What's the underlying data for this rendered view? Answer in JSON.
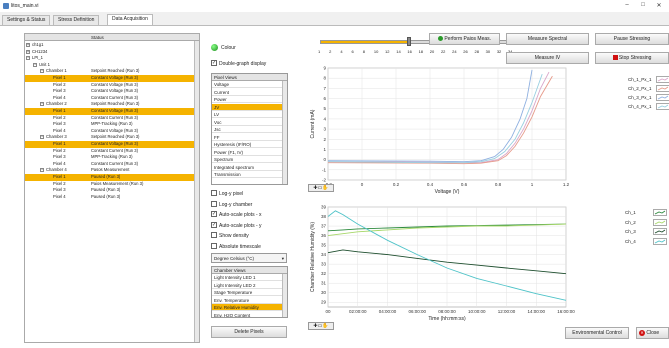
{
  "window": {
    "title": "litos_main.vi",
    "controls": [
      "–",
      "□",
      "✕"
    ]
  },
  "tabs": [
    {
      "label": "Settings & Status",
      "active": false
    },
    {
      "label": "Stress Definition",
      "active": false
    },
    {
      "label": "Data Acquisition",
      "active": true
    }
  ],
  "tree": {
    "header_status": "Status",
    "rows": [
      {
        "level": 0,
        "name": "ch1g1",
        "status": "",
        "expander": "+",
        "selected": false
      },
      {
        "level": 0,
        "name": "CH1234",
        "status": "",
        "expander": "+",
        "selected": false
      },
      {
        "level": 0,
        "name": "LPI_1",
        "status": "",
        "expander": "−",
        "selected": false
      },
      {
        "level": 1,
        "name": "Unit 1",
        "status": "",
        "expander": "−",
        "selected": false
      },
      {
        "level": 2,
        "name": "Chamber 1",
        "status": "Setpoint Reached (Run 3)",
        "expander": "−",
        "selected": false
      },
      {
        "level": 3,
        "name": "Pixel 1",
        "status": "Constant Voltage (Run 3)",
        "expander": "",
        "selected": true
      },
      {
        "level": 3,
        "name": "Pixel 2",
        "status": "Constant Voltage (Run 3)",
        "expander": "",
        "selected": false
      },
      {
        "level": 3,
        "name": "Pixel 3",
        "status": "Constant Voltage (Run 3)",
        "expander": "",
        "selected": false
      },
      {
        "level": 3,
        "name": "Pixel 4",
        "status": "Constant Current (Run 3)",
        "expander": "",
        "selected": false
      },
      {
        "level": 2,
        "name": "Chamber 2",
        "status": "Setpoint Reached (Run 3)",
        "expander": "−",
        "selected": false
      },
      {
        "level": 3,
        "name": "Pixel 1",
        "status": "Constant Voltage (Run 3)",
        "expander": "",
        "selected": true
      },
      {
        "level": 3,
        "name": "Pixel 2",
        "status": "Constant Current (Run 3)",
        "expander": "",
        "selected": false
      },
      {
        "level": 3,
        "name": "Pixel 3",
        "status": "MPP-Tracking (Run 3)",
        "expander": "",
        "selected": false
      },
      {
        "level": 3,
        "name": "Pixel 4",
        "status": "Constant Voltage (Run 3)",
        "expander": "",
        "selected": false
      },
      {
        "level": 2,
        "name": "Chamber 3",
        "status": "Setpoint Reached (Run 3)",
        "expander": "−",
        "selected": false
      },
      {
        "level": 3,
        "name": "Pixel 1",
        "status": "Constant Voltage (Run 3)",
        "expander": "",
        "selected": true
      },
      {
        "level": 3,
        "name": "Pixel 2",
        "status": "Constant Current (Run 3)",
        "expander": "",
        "selected": false
      },
      {
        "level": 3,
        "name": "Pixel 3",
        "status": "MPP-Tracking (Run 3)",
        "expander": "",
        "selected": false
      },
      {
        "level": 3,
        "name": "Pixel 4",
        "status": "Constant Current (Run 3)",
        "expander": "",
        "selected": false
      },
      {
        "level": 2,
        "name": "Chamber 4",
        "status": "Pasos Measurement",
        "expander": "−",
        "selected": false
      },
      {
        "level": 3,
        "name": "Pixel 1",
        "status": "Paused (Run 3)",
        "expander": "",
        "selected": true
      },
      {
        "level": 3,
        "name": "Pixel 2",
        "status": "Paios Measurement (Run 3)",
        "expander": "",
        "selected": false
      },
      {
        "level": 3,
        "name": "Pixel 3",
        "status": "Paused (Run 3)",
        "expander": "",
        "selected": false
      },
      {
        "level": 3,
        "name": "Pixel 4",
        "status": "Paused (Run 3)",
        "expander": "",
        "selected": false
      }
    ]
  },
  "controls": {
    "colour_label": "Colour",
    "double_graph_label": "Double-graph display",
    "double_graph_checked": true,
    "pixel_views_header": "Pixel Views",
    "pixel_views": [
      "Voltage",
      "Current",
      "Power",
      "JV",
      "LV",
      "Voc",
      "Jsc",
      "FF",
      "Hysteresis (IF/RO)",
      "Power (F1, IV)",
      "Spectrum",
      "Integrated spectrum",
      "Transmission"
    ],
    "pixel_views_selected": "JV",
    "checks": [
      {
        "label": "Log-y pixel",
        "checked": false
      },
      {
        "label": "Log-y chamber",
        "checked": false
      },
      {
        "label": "Auto-scale plots - x",
        "checked": true
      },
      {
        "label": "Auto-scale plots - y",
        "checked": true
      },
      {
        "label": "Show density",
        "checked": false
      },
      {
        "label": "Absolute timescale",
        "checked": false
      }
    ],
    "temp_unit": "Degree Celsius (°C)",
    "chamber_views_header": "Chamber Views",
    "chamber_views": [
      "Light Intensity LED 1",
      "Light Intensity LED 2",
      "Stage Temperature",
      "Env. Temperature",
      "Env. Relative Humidity",
      "Env. H2O Content"
    ],
    "chamber_views_selected": "Env. Relative Humidity",
    "delete_pixels_label": "Delete Pixels"
  },
  "top": {
    "perform_paios_label": "Perform Paios Meas.",
    "measure_spectral_label": "Measure Spectral",
    "measure_iv_label": "Measure IV",
    "pause_stressing_label": "Pause Stressing",
    "stop_stressing_label": "Stop Stressing",
    "slider_ticks": [
      "1",
      "2",
      "4",
      "6",
      "8",
      "10",
      "12",
      "14",
      "16",
      "18",
      "20",
      "22",
      "24",
      "26",
      "28",
      "30",
      "32",
      "34"
    ],
    "slider_value_fraction": 0.47,
    "colors": {
      "slider_accent": "#f5b300",
      "stop_red": "#d01010"
    }
  },
  "bottom": {
    "environmental_control_label": "Environmental Control",
    "close_label": "Close"
  },
  "chart_data": [
    {
      "type": "line",
      "xlabel": "Voltage (V)",
      "ylabel": "Current (mA)",
      "xticks": [
        "-0.2",
        "0",
        "0.2",
        "0.4",
        "0.6",
        "0.8",
        "1",
        "1.2"
      ],
      "yticks": [
        "9",
        "8",
        "7",
        "6",
        "5",
        "4",
        "3",
        "2",
        "1",
        "0",
        "-1",
        "-2"
      ],
      "xlim": [
        -0.2,
        1.2
      ],
      "ylim": [
        -2,
        9
      ],
      "grid": true,
      "legend_position": "right",
      "series": [
        {
          "name": "Ch_1_Px_1",
          "color": "#d9a6c9",
          "x": [
            -0.2,
            0.4,
            0.6,
            0.7,
            0.8,
            0.85,
            0.9,
            0.95,
            1.0,
            1.05,
            1.1
          ],
          "y": [
            -0.2,
            -0.25,
            -0.3,
            -0.3,
            0,
            0.6,
            1.6,
            3.0,
            4.8,
            7.0,
            8.6
          ]
        },
        {
          "name": "Ch_2_Px_1",
          "color": "#e69a8a",
          "x": [
            -0.2,
            0.4,
            0.6,
            0.7,
            0.8,
            0.85,
            0.9,
            0.95,
            1.0,
            1.05,
            1.12
          ],
          "y": [
            -0.3,
            -0.35,
            -0.4,
            -0.35,
            -0.1,
            0.4,
            1.3,
            2.6,
            4.2,
            6.2,
            8.2
          ]
        },
        {
          "name": "Ch_3_Px_1",
          "color": "#8fb0e0",
          "x": [
            -0.2,
            0.4,
            0.6,
            0.7,
            0.78,
            0.83,
            0.88,
            0.93,
            0.97,
            1.0
          ],
          "y": [
            -0.1,
            -0.15,
            -0.2,
            -0.1,
            0.3,
            1.0,
            2.2,
            4.0,
            6.0,
            8.8
          ]
        },
        {
          "name": "Ch_4_Px_1",
          "color": "#99cfe0",
          "x": [
            -0.2,
            0.4,
            0.6,
            0.7,
            0.78,
            0.84,
            0.9,
            0.95,
            1.0,
            1.06
          ],
          "y": [
            -0.2,
            -0.3,
            -0.3,
            -0.2,
            0.1,
            0.8,
            2.0,
            3.6,
            5.6,
            8.4
          ]
        }
      ]
    },
    {
      "type": "line",
      "xlabel": "Time (hh:mm:ss)",
      "ylabel": "Chamber Relative Humidity (%)",
      "xticks": [
        "00",
        "02:00:00",
        "04:00:00",
        "06:00:00",
        "08:00:00",
        "10:00:00",
        "12:00:00",
        "14:00:00",
        "16:00:00"
      ],
      "yticks": [
        "39",
        "38",
        "37",
        "36",
        "35",
        "34",
        "33",
        "32",
        "31",
        "30",
        "29",
        "28"
      ],
      "xlim": [
        0,
        16
      ],
      "ylim": [
        28.5,
        39
      ],
      "grid": true,
      "legend_position": "right",
      "series": [
        {
          "name": "Ch_1",
          "color": "#2e8b3e",
          "x": [
            0,
            1,
            2,
            4,
            6,
            8,
            10,
            12,
            14,
            16
          ],
          "y": [
            36.5,
            36.6,
            36.7,
            36.8,
            36.9,
            37.0,
            37.05,
            37.1,
            37.15,
            37.2
          ]
        },
        {
          "name": "Ch_2",
          "color": "#a8d86a",
          "x": [
            0,
            1,
            2,
            4,
            6,
            8,
            10,
            12,
            14,
            16
          ],
          "y": [
            36.0,
            36.2,
            36.4,
            36.6,
            36.8,
            36.9,
            37.0,
            37.0,
            37.1,
            37.2
          ]
        },
        {
          "name": "Ch_3",
          "color": "#1e4e2e",
          "x": [
            0,
            1,
            2,
            4,
            6,
            8,
            10,
            12,
            14,
            16
          ],
          "y": [
            34.2,
            34.5,
            34.3,
            34.0,
            33.6,
            33.2,
            32.9,
            32.6,
            32.3,
            32.0
          ]
        },
        {
          "name": "Ch_4",
          "color": "#4fc3c8",
          "x": [
            0,
            0.5,
            1,
            2,
            4,
            6,
            8,
            10,
            12,
            14,
            16
          ],
          "y": [
            38.0,
            38.6,
            38.2,
            37.2,
            35.5,
            34.0,
            32.6,
            31.5,
            30.7,
            29.9,
            29.2
          ]
        }
      ]
    }
  ]
}
